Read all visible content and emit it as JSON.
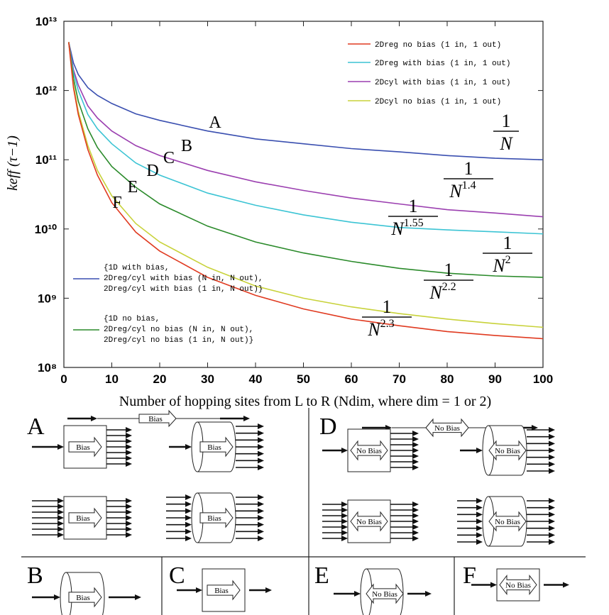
{
  "chart_data": {
    "type": "line",
    "y_label": "keff (τ−1)",
    "x_label": "Number of hopping sites from L to R (Ndim, where dim = 1 or 2)",
    "y_scale": "log",
    "xlim": [
      0,
      100
    ],
    "xticks": [
      0,
      10,
      20,
      30,
      40,
      50,
      60,
      70,
      80,
      90,
      100
    ],
    "ylim": [
      100000000,
      10000000000000
    ],
    "yticks": [
      {
        "value": 100000000,
        "label": "10⁸"
      },
      {
        "value": 1000000000,
        "label": "10⁹"
      },
      {
        "value": 10000000000,
        "label": "10¹⁰"
      },
      {
        "value": 100000000000,
        "label": "10¹¹"
      },
      {
        "value": 1000000000000,
        "label": "10¹²"
      },
      {
        "value": 10000000000000,
        "label": "10¹³"
      }
    ],
    "x": [
      1,
      2,
      3,
      5,
      7,
      10,
      15,
      20,
      30,
      40,
      50,
      60,
      70,
      80,
      90,
      100
    ],
    "series": [
      {
        "name": "{1D with bias,\n2Dreg/cyl with bias (N in, N out),\n2Dreg/cyl with bias (1 in, N out)}",
        "color": "#3a4fb0",
        "values": [
          5000000000000,
          2500000000000,
          1700000000000,
          1100000000000,
          850000000000,
          650000000000,
          460000000000,
          370000000000,
          260000000000,
          200000000000,
          170000000000,
          145000000000,
          130000000000,
          115000000000,
          105000000000,
          100000000000
        ]
      },
      {
        "name": "2Dcyl with bias (1 in, 1 out)",
        "color": "#9b3fb0",
        "values": [
          5000000000000,
          2000000000000,
          1200000000000,
          600000000000,
          400000000000,
          260000000000,
          160000000000,
          115000000000,
          70000000000,
          48000000000,
          36000000000,
          28000000000,
          23000000000,
          19000000000,
          17000000000,
          15000000000
        ]
      },
      {
        "name": "2Dreg with bias (1 in, 1 out)",
        "color": "#3cc4d4",
        "values": [
          5000000000000,
          1800000000000,
          1000000000000,
          450000000000,
          280000000000,
          170000000000,
          90000000000,
          60000000000,
          33000000000,
          22000000000,
          16000000000,
          12500000000,
          10500000000,
          9700000000,
          9100000000,
          8500000000
        ]
      },
      {
        "name": "{1D no bias,\n2Dreg/cyl no bias (N in, N out),\n2Dreg/cyl no bias (1 in, N out)}",
        "color": "#2a8a2a",
        "values": [
          5000000000000,
          1500000000000,
          700000000000,
          280000000000,
          150000000000,
          80000000000,
          40000000000,
          23000000000,
          11000000000,
          6500000000,
          4500000000,
          3400000000,
          2700000000,
          2300000000,
          2100000000,
          2000000000
        ]
      },
      {
        "name": "2Dcyl no bias (1 in, 1 out)",
        "color": "#c8d23a",
        "values": [
          5000000000000,
          1200000000000,
          500000000000,
          160000000000,
          70000000000,
          30000000000,
          12000000000,
          6500000000,
          2800000000,
          1500000000,
          1000000000,
          750000000,
          600000000,
          500000000,
          430000000,
          380000000
        ]
      },
      {
        "name": "2Dreg no bias (1 in, 1 out)",
        "color": "#e03a20",
        "values": [
          5000000000000,
          1100000000000,
          450000000000,
          140000000000,
          60000000000,
          24000000000,
          9000000000,
          4800000000,
          2000000000,
          1100000000,
          700000000,
          500000000,
          400000000,
          330000000,
          290000000,
          260000000
        ]
      }
    ],
    "annotations": [
      "A",
      "B",
      "C",
      "D",
      "E",
      "F"
    ],
    "fractions": [
      {
        "numerator": "1",
        "denominator": "N"
      },
      {
        "numerator": "1",
        "denominator": "N",
        "exponent": "1.4"
      },
      {
        "numerator": "1",
        "denominator": "N",
        "exponent": "1.55"
      },
      {
        "numerator": "1",
        "denominator": "N",
        "exponent": "2"
      },
      {
        "numerator": "1",
        "denominator": "N",
        "exponent": "2.2"
      },
      {
        "numerator": "1",
        "denominator": "N",
        "exponent": "2.3"
      }
    ]
  },
  "diagram": {
    "panels": [
      {
        "label": "A",
        "tag": "Bias"
      },
      {
        "label": "D",
        "tag": "No Bias"
      },
      {
        "label": "B",
        "tag": "Bias"
      },
      {
        "label": "C",
        "tag": "Bias"
      },
      {
        "label": "E",
        "tag": "No Bias"
      },
      {
        "label": "F",
        "tag": "No Bias"
      }
    ]
  }
}
